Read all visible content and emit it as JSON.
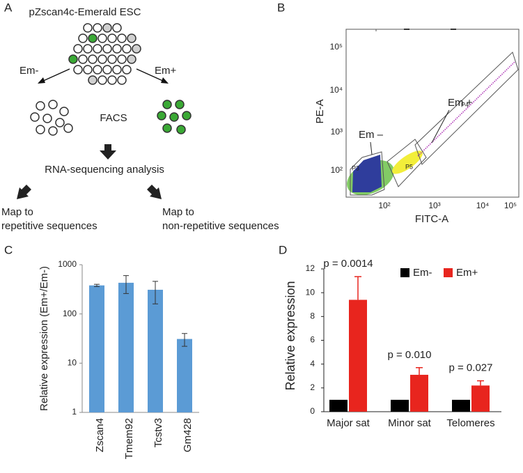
{
  "panel_labels": [
    "A",
    "B",
    "C",
    "D"
  ],
  "diagram": {
    "title": "pZscan4c-Emerald ESC",
    "left_label": "Em-",
    "right_label": "Em+",
    "method": "FACS",
    "analysis": "RNA-sequencing analysis",
    "left_output": [
      "Map to",
      "repetitive sequences"
    ],
    "right_output": [
      "Map to",
      "non-repetitive sequences"
    ]
  },
  "flow": {
    "x_label": "FITC-A",
    "y_label": "PE-A",
    "x_tick_labels": [
      "10²",
      "10³",
      "10⁴",
      "10⁵"
    ],
    "y_tick_labels": [
      "10⁵",
      "10⁴",
      "10³",
      "10²"
    ],
    "negative_label": "Em –",
    "positive_label": "Em +",
    "gates": [
      "P3",
      "P5",
      "P4"
    ]
  },
  "chart_data": [
    {
      "type": "bar",
      "y_label": "Relative expression (Em+/Em-)",
      "categories": [
        "Zscan4",
        "Tmem92",
        "Tcstv3",
        "Gm428"
      ],
      "values": [
        380,
        430,
        310,
        31
      ],
      "errors": [
        20,
        170,
        150,
        9
      ],
      "color": "#5b9bd5",
      "log_y": true,
      "ylim": [
        1,
        1000
      ],
      "yticks": [
        1,
        10,
        100,
        1000
      ]
    },
    {
      "type": "grouped_bar",
      "y_label": "Relative expression",
      "categories": [
        "Major sat",
        "Minor sat",
        "Telomeres"
      ],
      "series": [
        {
          "name": "Em-",
          "color": "#000000",
          "values": [
            1,
            1,
            1
          ]
        },
        {
          "name": "Em+",
          "color": "#e8251e",
          "values": [
            9.4,
            3.1,
            2.2
          ],
          "errors": [
            1.95,
            0.6,
            0.4
          ]
        }
      ],
      "annotations": [
        "p = 0.0014",
        "p = 0.010",
        "p = 0.027"
      ],
      "ylim": [
        0,
        12
      ],
      "yticks": [
        0,
        2,
        4,
        6,
        8,
        10,
        12
      ],
      "legend": "top-right"
    }
  ]
}
